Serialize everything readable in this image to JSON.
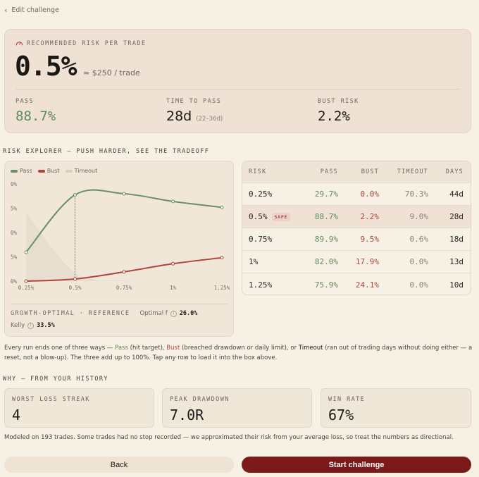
{
  "nav": {
    "back_label": "Edit challenge"
  },
  "hero": {
    "label": "RECOMMENDED RISK PER TRADE",
    "value": "0.5%",
    "approx": "≈ $250 / trade",
    "stats": {
      "pass_label": "PASS",
      "pass_value": "88.7%",
      "time_label": "TIME TO PASS",
      "time_value": "28d",
      "time_range": "(22–36d)",
      "bust_label": "BUST RISK",
      "bust_value": "2.2%"
    }
  },
  "explorer": {
    "title": "RISK EXPLORER — PUSH HARDER, SEE THE TRADEOFF",
    "legend": [
      "Pass",
      "Bust",
      "Timeout"
    ],
    "reference": {
      "title": "GROWTH-OPTIMAL · REFERENCE",
      "optimal_label": "Optimal f",
      "optimal_value": "26.0%",
      "kelly_label": "Kelly",
      "kelly_value": "33.5%"
    }
  },
  "chart_data": {
    "type": "line",
    "x": [
      "0.25%",
      "0.5%",
      "0.75%",
      "1%",
      "1.25%"
    ],
    "ytick_labels": [
      "0%",
      "5%",
      "0%",
      "5%",
      "0%"
    ],
    "series": [
      {
        "name": "Pass",
        "values": [
          29.7,
          88.7,
          89.9,
          82.0,
          75.9
        ],
        "color": "#6a8f63"
      },
      {
        "name": "Bust",
        "values": [
          0.0,
          2.2,
          9.5,
          17.9,
          24.1
        ],
        "color": "#b0433c"
      },
      {
        "name": "Timeout",
        "values": [
          70.3,
          9.0,
          0.6,
          0.0,
          0.0
        ],
        "color": "#d8cfc3"
      }
    ],
    "ylim": [
      0,
      100
    ],
    "selected_x": "0.5%",
    "grid": false,
    "legend_position": "top-left"
  },
  "table": {
    "headers": [
      "RISK",
      "PASS",
      "BUST",
      "TIMEOUT",
      "DAYS"
    ],
    "rows": [
      {
        "risk": "0.25%",
        "badge": "",
        "pass": "29.7%",
        "bust": "0.0%",
        "timeout": "70.3%",
        "days": "44d"
      },
      {
        "risk": "0.5%",
        "badge": "SAFE",
        "pass": "88.7%",
        "bust": "2.2%",
        "timeout": "9.0%",
        "days": "28d"
      },
      {
        "risk": "0.75%",
        "badge": "",
        "pass": "89.9%",
        "bust": "9.5%",
        "timeout": "0.6%",
        "days": "18d"
      },
      {
        "risk": "1%",
        "badge": "",
        "pass": "82.0%",
        "bust": "17.9%",
        "timeout": "0.0%",
        "days": "13d"
      },
      {
        "risk": "1.25%",
        "badge": "",
        "pass": "75.9%",
        "bust": "24.1%",
        "timeout": "0.0%",
        "days": "10d"
      }
    ]
  },
  "explainer": {
    "t1": "Every run ends one of three ways — ",
    "pass": "Pass",
    "t2": " (hit target), ",
    "bust": "Bust",
    "t3": " (breached drawdown or daily limit), or ",
    "timeout": "Timeout",
    "t4": " (ran out of trading days without doing either — a reset, not a blow-up). The three add up to 100%. Tap any row to load it into the box above."
  },
  "history": {
    "title": "WHY — FROM YOUR HISTORY",
    "cards": [
      {
        "label": "WORST LOSS STREAK",
        "value": "4"
      },
      {
        "label": "PEAK DRAWDOWN",
        "value": "7.0R"
      },
      {
        "label": "WIN RATE",
        "value": "67%"
      }
    ],
    "footnote": "Modeled on 193 trades. Some trades had no stop recorded — we approximated their risk from your average loss, so treat the numbers as directional."
  },
  "actions": {
    "back": "Back",
    "start": "Start challenge"
  },
  "colors": {
    "accent": "#7c1a1a",
    "pass": "#5f8a5d",
    "bust": "#b0433c"
  }
}
